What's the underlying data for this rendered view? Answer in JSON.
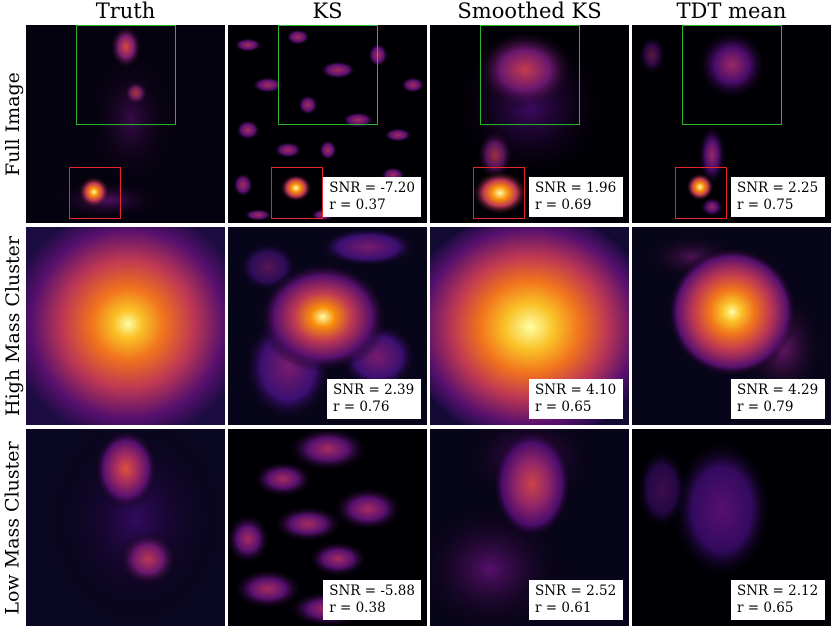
{
  "columns": [
    "Truth",
    "KS",
    "Smoothed KS",
    "TDT mean"
  ],
  "rows": [
    "Full Image",
    "High Mass Cluster",
    "Low Mass Cluster"
  ],
  "stats": {
    "full": [
      null,
      {
        "snr": "SNR = -7.20",
        "r": "r = 0.37"
      },
      {
        "snr": "SNR = 1.96",
        "r": "r = 0.69"
      },
      {
        "snr": "SNR = 2.25",
        "r": "r = 0.75"
      }
    ],
    "high": [
      null,
      {
        "snr": "SNR = 2.39",
        "r": "r = 0.76"
      },
      {
        "snr": "SNR = 4.10",
        "r": "r = 0.65"
      },
      {
        "snr": "SNR = 4.29",
        "r": "r = 0.79"
      }
    ],
    "low": [
      null,
      {
        "snr": "SNR = -5.88",
        "r": "r = 0.38"
      },
      {
        "snr": "SNR = 2.52",
        "r": "r = 0.61"
      },
      {
        "snr": "SNR = 2.12",
        "r": "r = 0.65"
      }
    ]
  },
  "colors": {
    "colormap": "inferno",
    "highlight_box_green": "#2bb52b",
    "highlight_box_red": "#e8262a"
  }
}
